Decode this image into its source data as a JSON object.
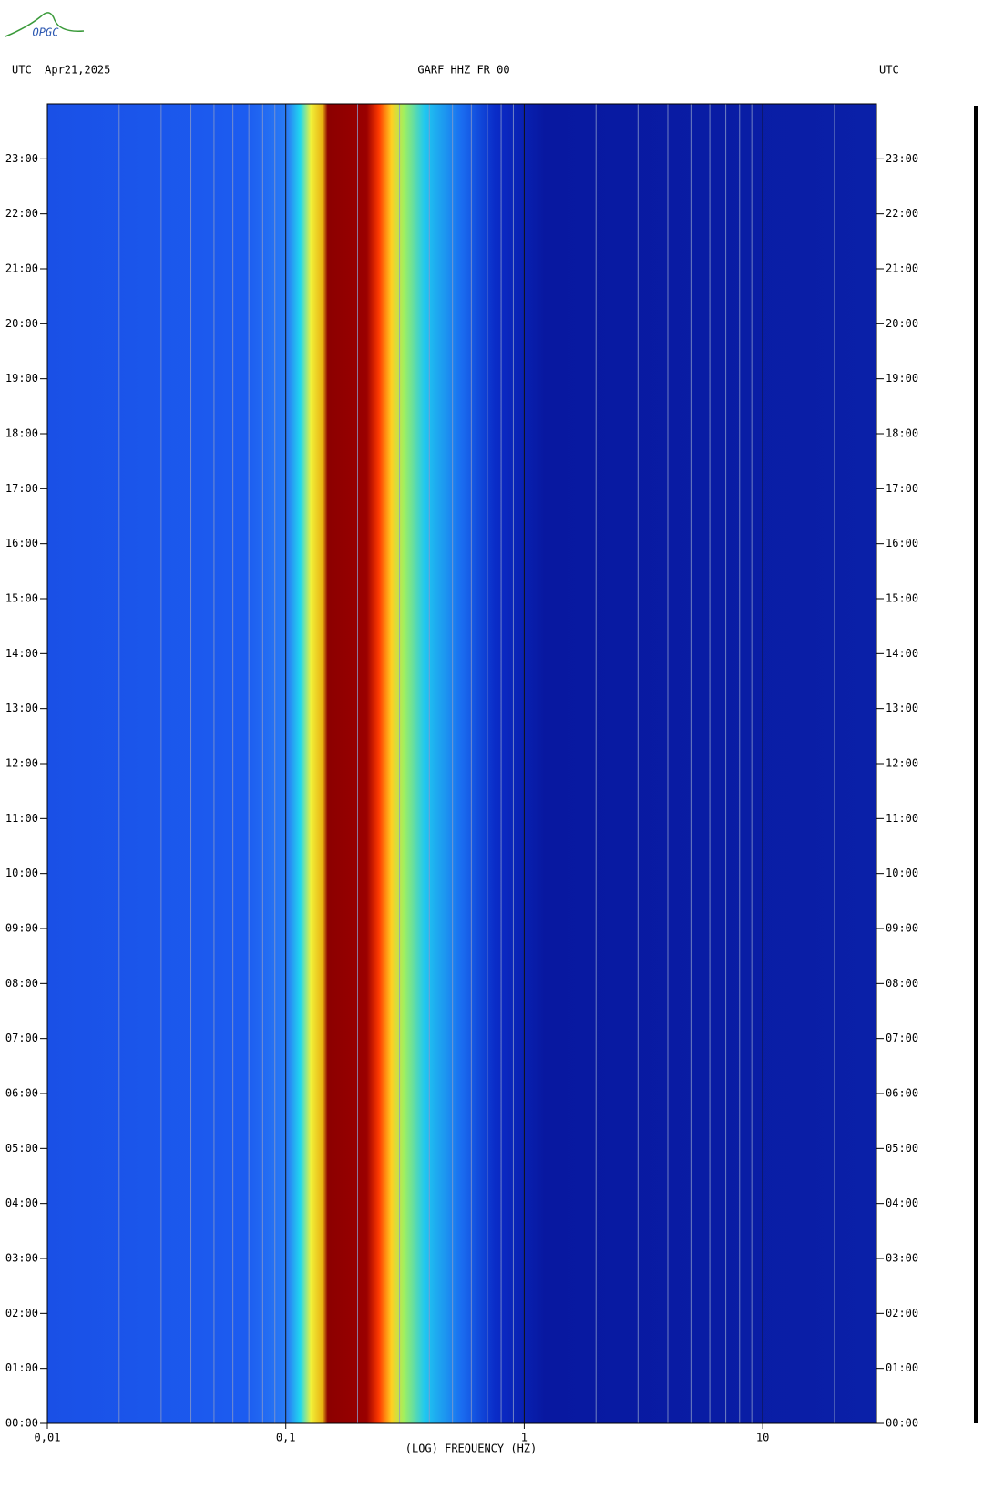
{
  "chart_data": {
    "type": "spectrogram",
    "logo": "OPGC",
    "title_left": "UTC  Apr21,2025",
    "title": "GARF HHZ FR 00",
    "title_right": "UTC",
    "xlabel": "(LOG) FREQUENCY (HZ)",
    "xscale": "log",
    "xlim": [
      0.01,
      30
    ],
    "xticks": [
      {
        "value": 0.01,
        "label": "0,01"
      },
      {
        "value": 0.1,
        "label": "0,1"
      },
      1,
      10
    ],
    "xminor_grid": [
      0.02,
      0.03,
      0.04,
      0.05,
      0.06,
      0.07,
      0.08,
      0.09,
      0.2,
      0.3,
      0.4,
      0.5,
      0.6,
      0.7,
      0.8,
      0.9,
      2,
      3,
      4,
      5,
      6,
      7,
      8,
      9,
      20
    ],
    "ylim": [
      0,
      24
    ],
    "yticks": [
      {
        "value": 0,
        "label": "00:00"
      },
      {
        "value": 1,
        "label": "01:00"
      },
      {
        "value": 2,
        "label": "02:00"
      },
      {
        "value": 3,
        "label": "03:00"
      },
      {
        "value": 4,
        "label": "04:00"
      },
      {
        "value": 5,
        "label": "05:00"
      },
      {
        "value": 6,
        "label": "06:00"
      },
      {
        "value": 7,
        "label": "07:00"
      },
      {
        "value": 8,
        "label": "08:00"
      },
      {
        "value": 9,
        "label": "09:00"
      },
      {
        "value": 10,
        "label": "10:00"
      },
      {
        "value": 11,
        "label": "11:00"
      },
      {
        "value": 12,
        "label": "12:00"
      },
      {
        "value": 13,
        "label": "13:00"
      },
      {
        "value": 14,
        "label": "14:00"
      },
      {
        "value": 15,
        "label": "15:00"
      },
      {
        "value": 16,
        "label": "16:00"
      },
      {
        "value": 17,
        "label": "17:00"
      },
      {
        "value": 18,
        "label": "18:00"
      },
      {
        "value": 19,
        "label": "19:00"
      },
      {
        "value": 20,
        "label": "20:00"
      },
      {
        "value": 21,
        "label": "21:00"
      },
      {
        "value": 22,
        "label": "22:00"
      },
      {
        "value": 23,
        "label": "23:00"
      }
    ]
  }
}
